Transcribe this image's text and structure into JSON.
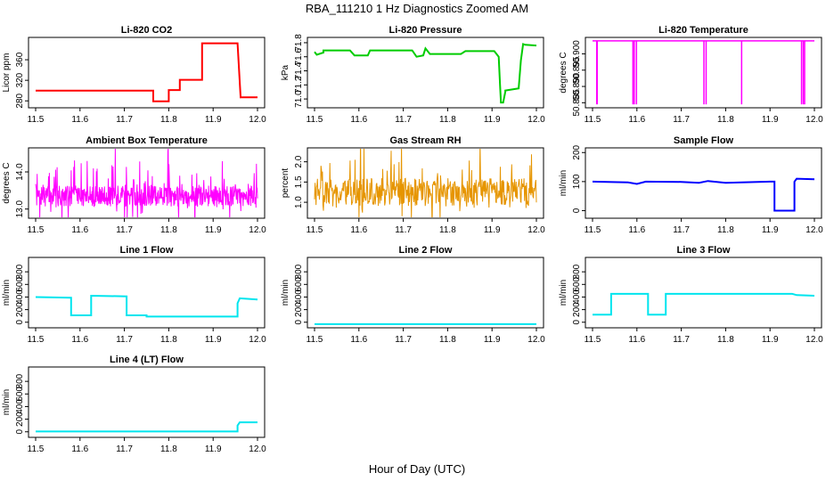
{
  "figure": {
    "title": "RBA_111210  1 Hz Diagnostics Zoomed AM",
    "xlabel": "Hour of Day (UTC)"
  },
  "chart_data": [
    {
      "id": "co2",
      "type": "line",
      "title": "Li-820 CO2",
      "ylabel": "Licor ppm",
      "color": "#ff0000",
      "xlim": [
        11.5,
        12.0
      ],
      "ylim": [
        270,
        400
      ],
      "xticks": [
        "11.5",
        "11.6",
        "11.7",
        "11.8",
        "11.9",
        "12.0"
      ],
      "yticks": [
        "280",
        "320",
        "360"
      ],
      "ytick_values": [
        280,
        320,
        360
      ],
      "series": [
        {
          "x": [
            11.5,
            11.765,
            11.765,
            11.8,
            11.8,
            11.825,
            11.825,
            11.875,
            11.875,
            11.955,
            11.955,
            11.962,
            11.962,
            12.0
          ],
          "y": [
            300,
            300,
            279,
            279,
            301,
            301,
            321,
            321,
            392,
            392,
            392,
            285,
            287,
            287
          ]
        }
      ]
    },
    {
      "id": "pressure",
      "type": "line",
      "title": "Li-820 Pressure",
      "ylabel": "kPa",
      "color": "#00cc00",
      "xlim": [
        11.5,
        12.0
      ],
      "ylim": [
        70.9,
        71.85
      ],
      "xticks": [
        "11.5",
        "11.6",
        "11.7",
        "11.8",
        "11.9",
        "12.0"
      ],
      "yticks": [
        "71.0",
        "71.2",
        "71.4",
        "71.6",
        "71.8"
      ],
      "ytick_values": [
        71.0,
        71.2,
        71.4,
        71.6,
        71.8
      ],
      "series": [
        {
          "x": [
            11.5,
            11.505,
            11.52,
            11.52,
            11.58,
            11.59,
            11.62,
            11.625,
            11.72,
            11.73,
            11.745,
            11.75,
            11.76,
            11.83,
            11.84,
            11.905,
            11.915,
            11.918,
            11.92,
            11.925,
            11.93,
            11.93,
            11.96,
            11.965,
            11.97,
            11.975,
            12.0
          ],
          "y": [
            71.67,
            71.63,
            71.66,
            71.69,
            71.69,
            71.62,
            71.62,
            71.69,
            71.69,
            71.6,
            71.62,
            71.72,
            71.64,
            71.64,
            71.68,
            71.68,
            71.6,
            71.2,
            70.95,
            70.95,
            71.1,
            71.12,
            71.15,
            71.55,
            71.78,
            71.77,
            71.76
          ]
        }
      ]
    },
    {
      "id": "licor_temp",
      "type": "line",
      "title": "Li-820 Temperature",
      "ylabel": "degrees C",
      "color": "#ff00ff",
      "xlim": [
        11.5,
        12.0
      ],
      "ylim": [
        50.884,
        50.9045
      ],
      "xticks": [
        "11.5",
        "11.6",
        "11.7",
        "11.8",
        "11.9",
        "12.0"
      ],
      "yticks": [
        "50.885",
        "50.890",
        "50.895",
        "50.900"
      ],
      "ytick_values": [
        50.885,
        50.89,
        50.895,
        50.9
      ],
      "baseline": 50.904,
      "dips": [
        {
          "x": [
            11.508,
            11.512
          ],
          "low": 50.8845
        },
        {
          "x": [
            11.5895,
            11.5905
          ],
          "low": 50.8845
        },
        {
          "x": [
            11.5925,
            11.5935
          ],
          "low": 50.8845
        },
        {
          "x": [
            11.5975,
            11.5985
          ],
          "low": 50.8845
        },
        {
          "x": [
            11.7495,
            11.7505
          ],
          "low": 50.8845
        },
        {
          "x": [
            11.7545,
            11.7555
          ],
          "low": 50.8845
        },
        {
          "x": [
            11.8345,
            11.8355
          ],
          "low": 50.8845
        },
        {
          "x": [
            11.9695,
            11.9705
          ],
          "low": 50.8845
        },
        {
          "x": [
            11.9735,
            11.9745
          ],
          "low": 50.8845
        },
        {
          "x": [
            11.9765,
            11.9775
          ],
          "low": 50.8845
        }
      ]
    },
    {
      "id": "ambient_temp",
      "type": "line",
      "title": "Ambient Box Temperature",
      "ylabel": "degrees C",
      "color": "#ff00ff",
      "xlim": [
        11.5,
        12.0
      ],
      "ylim": [
        12.8,
        14.6
      ],
      "xticks": [
        "11.5",
        "11.6",
        "11.7",
        "11.8",
        "11.9",
        "12.0"
      ],
      "yticks": [
        "13.0",
        "14.0"
      ],
      "ytick_values": [
        13.0,
        14.0
      ],
      "noise": {
        "x_start": 11.5,
        "x_end": 12.0,
        "n": 600,
        "center": 13.35,
        "spread": 0.28,
        "spike": 0.9,
        "seed": 7
      }
    },
    {
      "id": "gas_rh",
      "type": "line",
      "title": "Gas Stream RH",
      "ylabel": "percent",
      "color": "#e69500",
      "xlim": [
        11.5,
        12.0
      ],
      "ylim": [
        0.65,
        2.3
      ],
      "xticks": [
        "11.5",
        "11.6",
        "11.7",
        "11.8",
        "11.9",
        "12.0"
      ],
      "yticks": [
        "1.0",
        "1.5",
        "2.0"
      ],
      "ytick_values": [
        1.0,
        1.5,
        2.0
      ],
      "noise": {
        "x_start": 11.5,
        "x_end": 12.0,
        "n": 450,
        "center": 1.25,
        "spread": 0.35,
        "spike": 0.85,
        "seed": 19
      }
    },
    {
      "id": "sample_flow",
      "type": "line",
      "title": "Sample Flow",
      "ylabel": "ml/min",
      "color": "#0000ff",
      "xlim": [
        11.5,
        12.0
      ],
      "ylim": [
        -20,
        210
      ],
      "xticks": [
        "11.5",
        "11.6",
        "11.7",
        "11.8",
        "11.9",
        "12.0"
      ],
      "yticks": [
        "0",
        "100",
        "200"
      ],
      "ytick_values": [
        0,
        100,
        200
      ],
      "series": [
        {
          "x": [
            11.5,
            11.58,
            11.6,
            11.62,
            11.7,
            11.74,
            11.76,
            11.8,
            11.9,
            11.91,
            11.91,
            11.955,
            11.955,
            11.96,
            12.0
          ],
          "y": [
            100,
            97,
            92,
            100,
            99,
            96,
            102,
            96,
            100,
            100,
            0,
            0,
            100,
            110,
            108
          ]
        }
      ]
    },
    {
      "id": "line1_flow",
      "type": "line",
      "title": "Line 1 Flow",
      "ylabel": "ml/min",
      "color": "#00e5ee",
      "xlim": [
        11.5,
        12.0
      ],
      "ylim": [
        -60,
        1000
      ],
      "xticks": [
        "11.5",
        "11.6",
        "11.7",
        "11.8",
        "11.9",
        "12.0"
      ],
      "yticks": [
        "0",
        "200",
        "400",
        "600",
        "800"
      ],
      "ytick_values": [
        0,
        200,
        400,
        600,
        800
      ],
      "series": [
        {
          "x": [
            11.5,
            11.58,
            11.58,
            11.625,
            11.625,
            11.705,
            11.705,
            11.75,
            11.75,
            11.955,
            11.955,
            11.96,
            12.0
          ],
          "y": [
            400,
            390,
            110,
            110,
            420,
            410,
            110,
            110,
            90,
            90,
            300,
            380,
            360
          ]
        }
      ]
    },
    {
      "id": "line2_flow",
      "type": "line",
      "title": "Line 2 Flow",
      "ylabel": "ml/min",
      "color": "#00e5ee",
      "xlim": [
        11.5,
        12.0
      ],
      "ylim": [
        -60,
        1000
      ],
      "xticks": [
        "11.5",
        "11.6",
        "11.7",
        "11.8",
        "11.9",
        "12.0"
      ],
      "yticks": [
        "0",
        "200",
        "400",
        "600",
        "800"
      ],
      "ytick_values": [
        0,
        200,
        400,
        600,
        800
      ],
      "series": [
        {
          "x": [
            11.5,
            12.0
          ],
          "y": [
            -30,
            -30
          ]
        }
      ]
    },
    {
      "id": "line3_flow",
      "type": "line",
      "title": "Line 3 Flow",
      "ylabel": "ml/min",
      "color": "#00e5ee",
      "xlim": [
        11.5,
        12.0
      ],
      "ylim": [
        -60,
        1000
      ],
      "xticks": [
        "11.5",
        "11.6",
        "11.7",
        "11.8",
        "11.9",
        "12.0"
      ],
      "yticks": [
        "0",
        "200",
        "400",
        "600",
        "800"
      ],
      "ytick_values": [
        0,
        200,
        400,
        600,
        800
      ],
      "series": [
        {
          "x": [
            11.5,
            11.542,
            11.542,
            11.625,
            11.625,
            11.665,
            11.665,
            11.95,
            11.96,
            12.0
          ],
          "y": [
            120,
            120,
            450,
            450,
            120,
            120,
            450,
            450,
            430,
            420
          ]
        }
      ]
    },
    {
      "id": "line4_flow",
      "type": "line",
      "title": "Line 4 (LT) Flow",
      "ylabel": "ml/min",
      "color": "#00e5ee",
      "xlim": [
        11.5,
        12.0
      ],
      "ylim": [
        -60,
        1000
      ],
      "xticks": [
        "11.5",
        "11.6",
        "11.7",
        "11.8",
        "11.9",
        "12.0"
      ],
      "yticks": [
        "0",
        "200",
        "400",
        "600",
        "800"
      ],
      "ytick_values": [
        0,
        200,
        400,
        600,
        800
      ],
      "series": [
        {
          "x": [
            11.5,
            11.955,
            11.955,
            11.96,
            12.0
          ],
          "y": [
            5,
            5,
            100,
            150,
            150
          ]
        }
      ]
    }
  ]
}
